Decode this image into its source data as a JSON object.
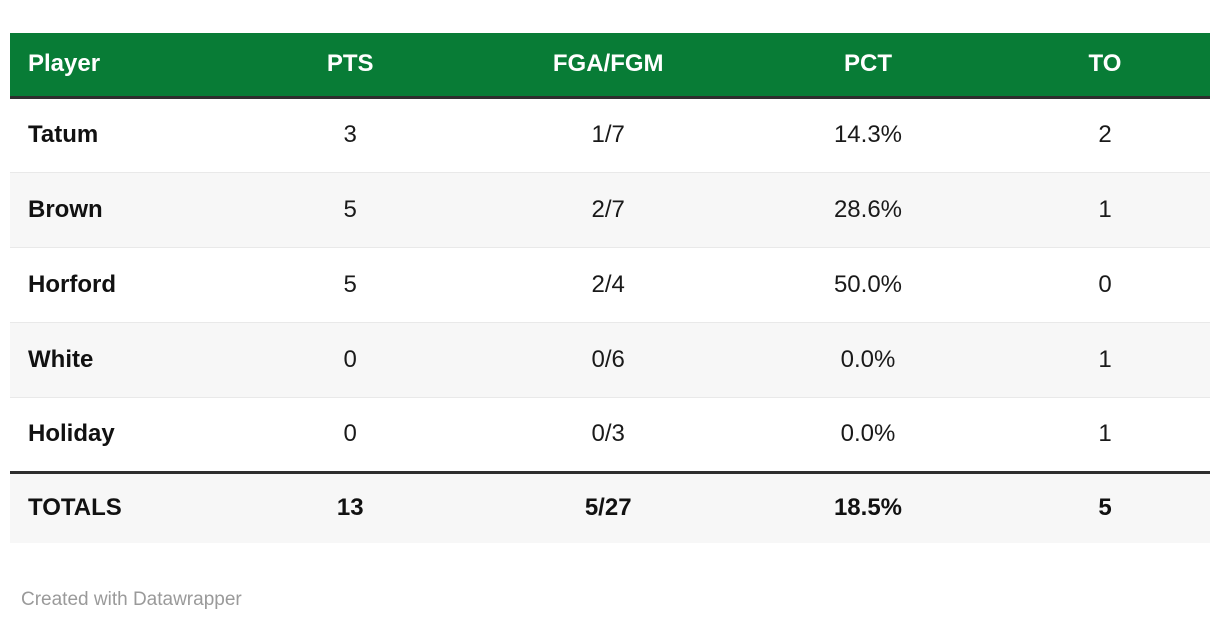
{
  "chart_data": {
    "type": "table",
    "columns": [
      {
        "key": "player",
        "label": "Player",
        "align": "left"
      },
      {
        "key": "pts",
        "label": "PTS",
        "align": "center"
      },
      {
        "key": "fga_fgm",
        "label": "FGA/FGM",
        "align": "center"
      },
      {
        "key": "pct",
        "label": "PCT",
        "align": "center"
      },
      {
        "key": "to",
        "label": "TO",
        "align": "center"
      }
    ],
    "rows": [
      [
        "Tatum",
        "3",
        "1/7",
        "14.3%",
        "2"
      ],
      [
        "Brown",
        "5",
        "2/7",
        "28.6%",
        "1"
      ],
      [
        "Horford",
        "5",
        "2/4",
        "50.0%",
        "0"
      ],
      [
        "White",
        "0",
        "0/6",
        "0.0%",
        "1"
      ],
      [
        "Holiday",
        "0",
        "0/3",
        "0.0%",
        "1"
      ]
    ],
    "totals_row": [
      "TOTALS",
      "13",
      "5/27",
      "18.5%",
      "5"
    ],
    "layout_hints": {
      "striped_rows": true,
      "header_style": "bold white on green",
      "totals_separator": "thick dark rule"
    }
  },
  "footer": {
    "attribution": "Created with Datawrapper"
  },
  "colors": {
    "page_bg": "#ffffff",
    "header_bg": "#087c36",
    "header_text": "#ffffff",
    "cell_text": "#1a1a1a",
    "row_alt_bg": "#f7f7f7",
    "row_border": "#e9e9e9",
    "rule_dark": "#2e2e2e",
    "attribution_text": "#9a9a9a"
  }
}
